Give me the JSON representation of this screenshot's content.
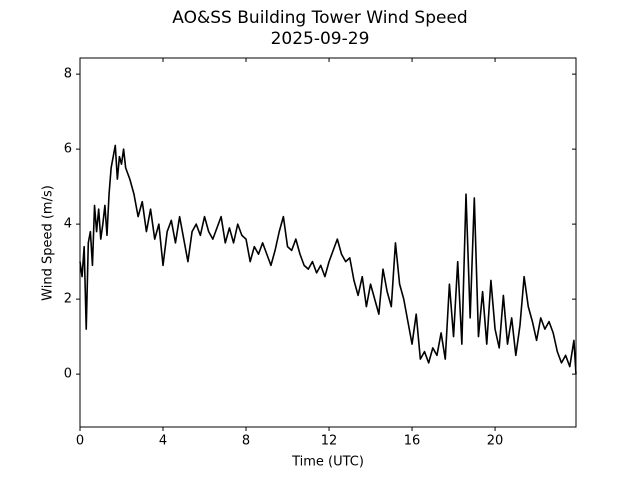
{
  "chart_data": {
    "type": "line",
    "title": "AO&SS Building Tower Wind Speed",
    "subtitle": "2025-09-29",
    "x_label": "Time (UTC)",
    "y_label": "Wind Speed (m/s)",
    "color": "#000000",
    "xlim": [
      0,
      23.9
    ],
    "ylim": [
      -1.41,
      8.43
    ],
    "xticks": [
      0,
      4,
      8,
      12,
      16,
      20
    ],
    "yticks": [
      0,
      2,
      4,
      6,
      8
    ],
    "x": [
      0.0,
      0.1,
      0.2,
      0.3,
      0.4,
      0.5,
      0.6,
      0.7,
      0.8,
      0.9,
      1.0,
      1.1,
      1.2,
      1.3,
      1.4,
      1.5,
      1.6,
      1.7,
      1.8,
      1.9,
      2.0,
      2.1,
      2.2,
      2.4,
      2.6,
      2.8,
      3.0,
      3.2,
      3.4,
      3.6,
      3.8,
      4.0,
      4.2,
      4.4,
      4.6,
      4.8,
      5.0,
      5.2,
      5.4,
      5.6,
      5.8,
      6.0,
      6.2,
      6.4,
      6.6,
      6.8,
      7.0,
      7.2,
      7.4,
      7.6,
      7.8,
      8.0,
      8.2,
      8.4,
      8.6,
      8.8,
      9.0,
      9.2,
      9.4,
      9.6,
      9.8,
      10.0,
      10.2,
      10.4,
      10.6,
      10.8,
      11.0,
      11.2,
      11.4,
      11.6,
      11.8,
      12.0,
      12.2,
      12.4,
      12.6,
      12.8,
      13.0,
      13.2,
      13.4,
      13.6,
      13.8,
      14.0,
      14.2,
      14.4,
      14.6,
      14.8,
      15.0,
      15.2,
      15.4,
      15.6,
      15.8,
      16.0,
      16.2,
      16.4,
      16.6,
      16.8,
      17.0,
      17.2,
      17.4,
      17.6,
      17.8,
      18.0,
      18.2,
      18.4,
      18.6,
      18.8,
      19.0,
      19.2,
      19.4,
      19.6,
      19.8,
      20.0,
      20.2,
      20.4,
      20.6,
      20.8,
      21.0,
      21.2,
      21.4,
      21.6,
      21.8,
      22.0,
      22.2,
      22.4,
      22.6,
      22.8,
      23.0,
      23.2,
      23.4,
      23.6,
      23.8,
      23.9
    ],
    "values": [
      3.0,
      2.6,
      3.4,
      1.2,
      3.5,
      3.8,
      2.9,
      4.5,
      3.8,
      4.4,
      3.6,
      4.0,
      4.5,
      3.7,
      4.8,
      5.5,
      5.8,
      6.1,
      5.2,
      5.8,
      5.6,
      6.0,
      5.5,
      5.2,
      4.8,
      4.2,
      4.6,
      3.8,
      4.4,
      3.6,
      4.0,
      2.9,
      3.8,
      4.1,
      3.5,
      4.2,
      3.6,
      3.0,
      3.8,
      4.0,
      3.7,
      4.2,
      3.8,
      3.6,
      3.9,
      4.2,
      3.5,
      3.9,
      3.5,
      4.0,
      3.7,
      3.6,
      3.0,
      3.4,
      3.2,
      3.5,
      3.2,
      2.9,
      3.3,
      3.8,
      4.2,
      3.4,
      3.3,
      3.6,
      3.2,
      2.9,
      2.8,
      3.0,
      2.7,
      2.9,
      2.6,
      3.0,
      3.3,
      3.6,
      3.2,
      3.0,
      3.1,
      2.5,
      2.1,
      2.6,
      1.8,
      2.4,
      2.0,
      1.6,
      2.8,
      2.2,
      1.8,
      3.5,
      2.4,
      2.0,
      1.4,
      0.8,
      1.6,
      0.4,
      0.6,
      0.3,
      0.7,
      0.5,
      1.1,
      0.4,
      2.4,
      1.0,
      3.0,
      0.8,
      4.8,
      1.5,
      4.7,
      1.0,
      2.2,
      0.8,
      2.5,
      1.2,
      0.7,
      2.1,
      0.8,
      1.5,
      0.5,
      1.3,
      2.6,
      1.8,
      1.4,
      0.9,
      1.5,
      1.2,
      1.4,
      1.1,
      0.6,
      0.3,
      0.5,
      0.2,
      0.9,
      0.0
    ]
  }
}
